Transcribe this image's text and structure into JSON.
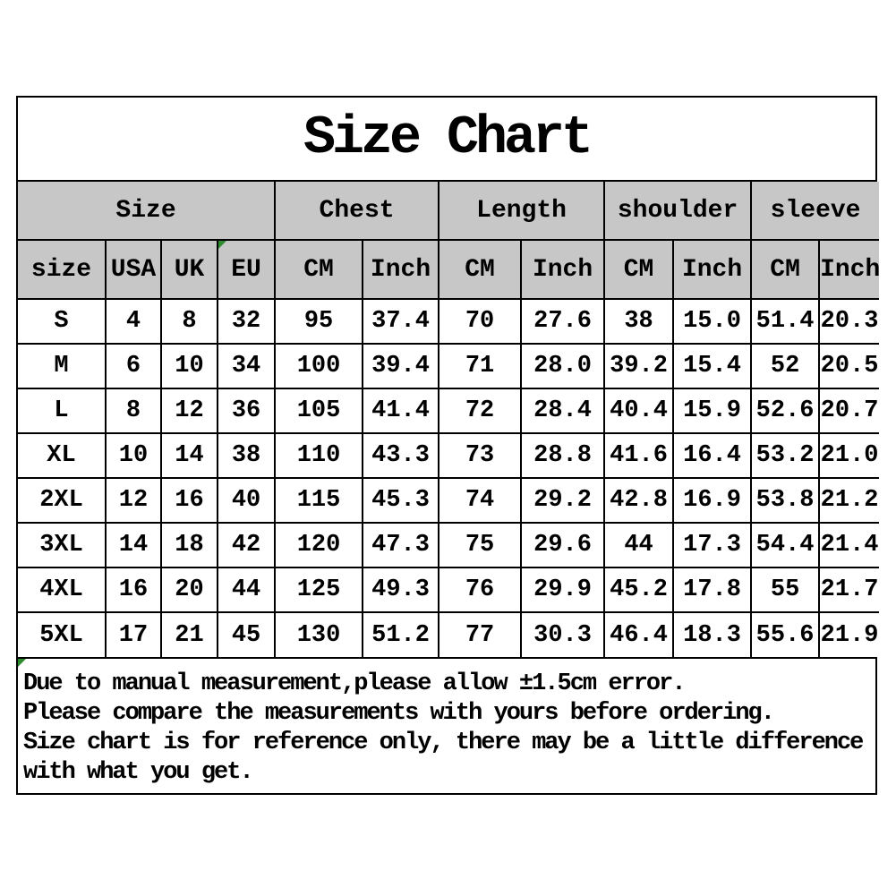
{
  "chart_data": {
    "type": "table",
    "title": "Size Chart",
    "column_groups": [
      {
        "label": "Size",
        "span": 4
      },
      {
        "label": "Chest",
        "span": 2
      },
      {
        "label": "Length",
        "span": 2
      },
      {
        "label": "shoulder",
        "span": 2
      },
      {
        "label": "sleeve",
        "span": 2
      }
    ],
    "columns": [
      "size",
      "USA",
      "UK",
      "EU",
      "CM",
      "Inch",
      "CM",
      "Inch",
      "CM",
      "Inch",
      "CM",
      "Inch"
    ],
    "rows": [
      [
        "S",
        "4",
        "8",
        "32",
        "95",
        "37.4",
        "70",
        "27.6",
        "38",
        "15.0",
        "51.4",
        "20.3"
      ],
      [
        "M",
        "6",
        "10",
        "34",
        "100",
        "39.4",
        "71",
        "28.0",
        "39.2",
        "15.4",
        "52",
        "20.5"
      ],
      [
        "L",
        "8",
        "12",
        "36",
        "105",
        "41.4",
        "72",
        "28.4",
        "40.4",
        "15.9",
        "52.6",
        "20.7"
      ],
      [
        "XL",
        "10",
        "14",
        "38",
        "110",
        "43.3",
        "73",
        "28.8",
        "41.6",
        "16.4",
        "53.2",
        "21.0"
      ],
      [
        "2XL",
        "12",
        "16",
        "40",
        "115",
        "45.3",
        "74",
        "29.2",
        "42.8",
        "16.9",
        "53.8",
        "21.2"
      ],
      [
        "3XL",
        "14",
        "18",
        "42",
        "120",
        "47.3",
        "75",
        "29.6",
        "44",
        "17.3",
        "54.4",
        "21.4"
      ],
      [
        "4XL",
        "16",
        "20",
        "44",
        "125",
        "49.3",
        "76",
        "29.9",
        "45.2",
        "17.8",
        "55",
        "21.7"
      ],
      [
        "5XL",
        "17",
        "21",
        "45",
        "130",
        "51.2",
        "77",
        "30.3",
        "46.4",
        "18.3",
        "55.6",
        "21.9"
      ]
    ],
    "footer_lines": [
      "Due to manual measurement,please allow ±1.5cm error.",
      "Please compare the measurements with yours before ordering.",
      "Size chart is for reference only, there may be a little difference with what you get."
    ],
    "layout_hints": {
      "header_bg": "#c7c7c7",
      "border_color": "#000000",
      "marker_color": "#2e8b2e",
      "background": "#ffffff"
    }
  }
}
